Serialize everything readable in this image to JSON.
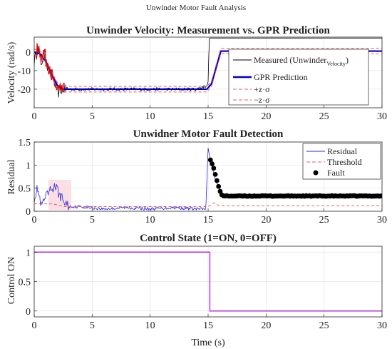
{
  "figure_title": "Unwinder Motor Fault Analysis",
  "colors": {
    "measured": "#000000",
    "gpr": "#0000cc",
    "band": "#e06060",
    "residual": "#2a2ae0",
    "threshold": "#e06060",
    "fault": "#000000",
    "control": "#b030e0",
    "early_noise": "#e00000"
  },
  "chart_data": [
    {
      "type": "line",
      "title": "Unwinder Velocity: Measurement vs. GPR Prediction",
      "xlabel": "",
      "ylabel": "Velocity (rad/s)",
      "xlim": [
        0,
        30
      ],
      "ylim": [
        -30,
        8
      ],
      "xticks": [
        0,
        5,
        10,
        15,
        20,
        25,
        30
      ],
      "yticks": [
        -20,
        -10,
        0
      ],
      "grid": true,
      "legend": {
        "placement": "right",
        "entries": [
          "Measured (Unwinder",
          "GPR Prediction",
          "+z·σ",
          "−z·σ"
        ],
        "measured_subscript": "Velocity",
        "measured_close": ")"
      },
      "series": [
        {
          "name": "Measured (UnwinderVelocity)",
          "x": [
            0,
            0.3,
            0.6,
            0.9,
            1.2,
            1.5,
            1.8,
            2.1,
            2.4,
            2.8,
            3.5,
            5,
            8,
            11,
            14,
            14.9,
            15.0,
            15.1,
            30
          ],
          "y": [
            -5,
            2,
            -6,
            -1,
            -10,
            -12,
            -17,
            -22,
            -20,
            -20,
            -20,
            -20,
            -20,
            -20,
            -20,
            -18,
            -16,
            7.5,
            7.5
          ],
          "noise": 4
        },
        {
          "name": "GPR Prediction",
          "x": [
            0,
            0.5,
            1,
            1.5,
            2,
            2.5,
            3,
            14.9,
            15.3,
            15.8,
            16.1,
            30
          ],
          "y": [
            0,
            -1,
            -5,
            -12,
            -18,
            -20,
            -20,
            -20,
            -17,
            -6,
            0.5,
            0.5
          ]
        },
        {
          "name": "+z·σ",
          "x": [
            0,
            0.5,
            1,
            1.5,
            2,
            2.5,
            3,
            14.9,
            15.3,
            15.8,
            16.1,
            30
          ],
          "y": [
            1.5,
            0.5,
            -3.5,
            -10.5,
            -16.5,
            -18.5,
            -18.5,
            -18.5,
            -15.5,
            -4.5,
            2,
            2
          ]
        },
        {
          "name": "−z·σ",
          "x": [
            0,
            0.5,
            1,
            1.5,
            2,
            2.5,
            3,
            14.9,
            15.3,
            15.8,
            16.1,
            30
          ],
          "y": [
            -1.5,
            -2.5,
            -6.5,
            -13.5,
            -19.5,
            -21.5,
            -21.5,
            -21.5,
            -18.5,
            -7.5,
            -1,
            -1
          ]
        }
      ]
    },
    {
      "type": "line",
      "title": "Unwidner Motor Fault Detection",
      "xlabel": "",
      "ylabel": "Residual",
      "xlim": [
        0,
        30
      ],
      "ylim": [
        0,
        1.5
      ],
      "xticks": [
        0,
        5,
        10,
        15,
        20,
        25,
        30
      ],
      "yticks": [
        0,
        0.5,
        1,
        1.5
      ],
      "grid": true,
      "legend": {
        "placement": "top-right",
        "entries": [
          "Residual",
          "Threshold",
          "Fault"
        ]
      },
      "series": [
        {
          "name": "Residual",
          "x": [
            0,
            0.3,
            0.6,
            1.0,
            1.4,
            1.8,
            2.2,
            2.6,
            3.0,
            4,
            6,
            8,
            10,
            12,
            14,
            14.8,
            15.0,
            15.2,
            15.6,
            16.2,
            30
          ],
          "y": [
            0.3,
            0.5,
            0.1,
            0.3,
            0.45,
            0.55,
            0.35,
            0.2,
            0.1,
            0.1,
            0.05,
            0.08,
            0.05,
            0.08,
            0.05,
            0.05,
            1.37,
            1.1,
            0.7,
            0.33,
            0.33
          ],
          "noise": 0.1
        },
        {
          "name": "Threshold",
          "x": [
            0,
            0.5,
            1,
            1.5,
            2,
            2.5,
            3,
            15.0,
            15.5,
            16.0,
            30
          ],
          "y": [
            0.16,
            0.16,
            0.16,
            0.16,
            0.14,
            0.1,
            0.1,
            0.1,
            0.18,
            0.12,
            0.12
          ]
        },
        {
          "name": "Fault",
          "x": [
            15.2,
            15.4,
            15.6,
            15.8,
            16.0,
            16.2,
            16.4,
            30
          ],
          "y": [
            1.12,
            1.0,
            0.82,
            0.62,
            0.45,
            0.35,
            0.33,
            0.33
          ],
          "marker": "dot"
        }
      ]
    },
    {
      "type": "line",
      "title": "Control State (1=ON, 0=OFF)",
      "xlabel": "Time (s)",
      "ylabel": "Control ON",
      "xlim": [
        0,
        30
      ],
      "ylim": [
        -0.1,
        1.1
      ],
      "xticks": [
        0,
        5,
        10,
        15,
        20,
        25,
        30
      ],
      "yticks": [
        0,
        0.5,
        1
      ],
      "grid": true,
      "series": [
        {
          "name": "Control",
          "x": [
            0,
            15.15,
            15.15,
            30
          ],
          "y": [
            1,
            1,
            0,
            0
          ]
        }
      ]
    }
  ]
}
